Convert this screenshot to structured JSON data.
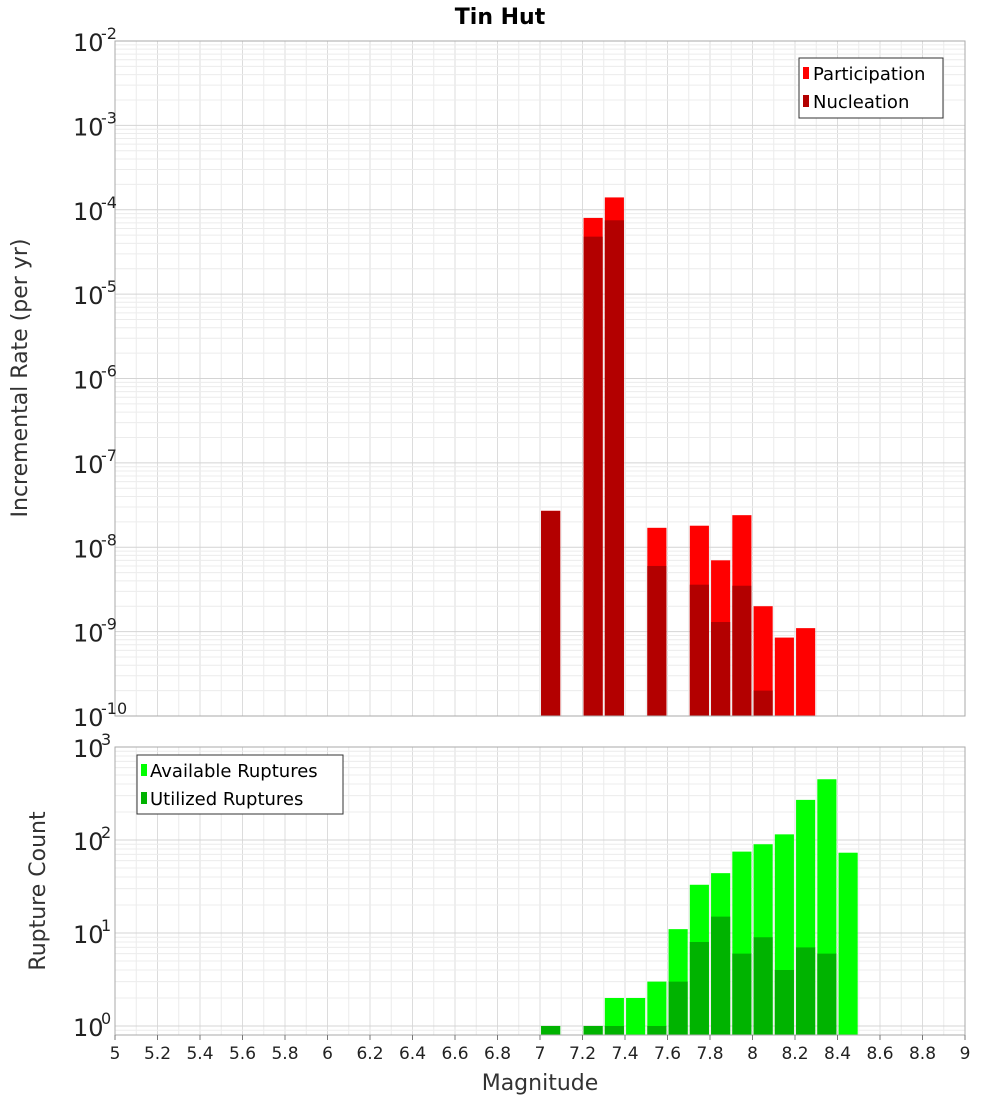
{
  "chart_data": [
    {
      "type": "bar",
      "title": "Tin Hut",
      "ylabel": "Incremental Rate (per yr)",
      "yscale": "log",
      "ylim": [
        1e-10,
        0.01
      ],
      "xlim": [
        5,
        9
      ],
      "grid": true,
      "legend_position": "top-right",
      "y_tick_exponents": [
        -2,
        -3,
        -4,
        -5,
        -6,
        -7,
        -8,
        -9,
        -10
      ],
      "series": [
        {
          "name": "Participation",
          "color": "#ff0000",
          "x": [
            7.05,
            7.25,
            7.35,
            7.55,
            7.75,
            7.85,
            7.95,
            8.05,
            8.15,
            8.25
          ],
          "values": [
            2.7e-08,
            8e-05,
            0.00014,
            1.7e-08,
            1.8e-08,
            7e-09,
            2.4e-08,
            2e-09,
            8.5e-10,
            1.1e-09
          ]
        },
        {
          "name": "Nucleation",
          "color": "#b30000",
          "x": [
            7.05,
            7.25,
            7.35,
            7.55,
            7.75,
            7.85,
            7.95,
            8.05
          ],
          "values": [
            2.7e-08,
            4.8e-05,
            7.5e-05,
            6e-09,
            3.6e-09,
            1.3e-09,
            3.5e-09,
            2e-10
          ]
        }
      ]
    },
    {
      "type": "bar",
      "ylabel": "Rupture Count",
      "xlabel": "Magnitude",
      "yscale": "log",
      "ylim": [
        0.8,
        1000
      ],
      "xlim": [
        5,
        9
      ],
      "grid": true,
      "legend_position": "top-left",
      "y_tick_exponents": [
        3,
        2,
        1,
        0
      ],
      "x_ticks": [
        "5",
        "5.2",
        "5.4",
        "5.6",
        "5.8",
        "6",
        "6.2",
        "6.4",
        "6.6",
        "6.8",
        "7",
        "7.2",
        "7.4",
        "7.6",
        "7.8",
        "8",
        "8.2",
        "8.4",
        "8.6",
        "8.8",
        "9"
      ],
      "series": [
        {
          "name": "Available Ruptures",
          "color": "#00ff00",
          "x": [
            7.05,
            7.25,
            7.35,
            7.45,
            7.55,
            7.65,
            7.75,
            7.85,
            7.95,
            8.05,
            8.15,
            8.25,
            8.35,
            8.45
          ],
          "values": [
            1,
            1,
            2,
            2,
            3,
            11,
            33,
            44,
            75,
            90,
            115,
            270,
            450,
            73
          ]
        },
        {
          "name": "Utilized Ruptures",
          "color": "#00b300",
          "x": [
            7.05,
            7.25,
            7.35,
            7.55,
            7.65,
            7.75,
            7.85,
            7.95,
            8.05,
            8.15,
            8.25,
            8.35
          ],
          "values": [
            1,
            1,
            1,
            1,
            3,
            8,
            15,
            6,
            9,
            4,
            7,
            6
          ]
        }
      ]
    }
  ]
}
